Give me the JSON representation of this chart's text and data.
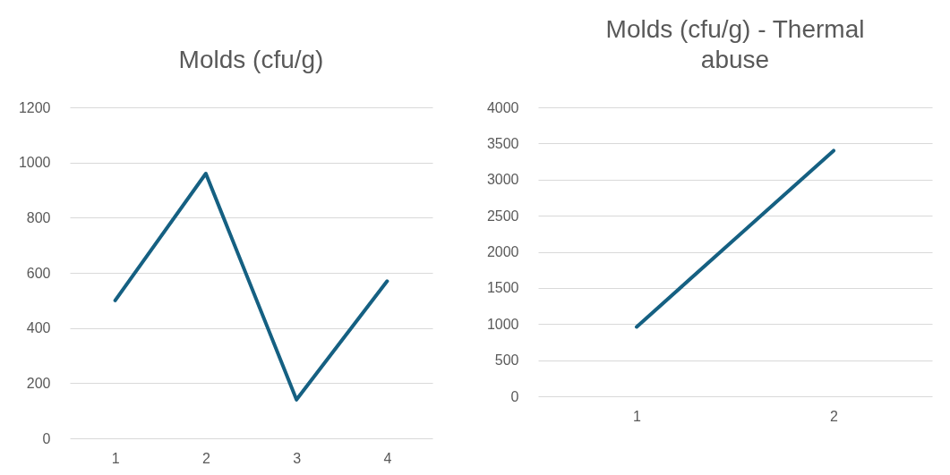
{
  "chart_data": [
    {
      "type": "line",
      "title": "Molds (cfu/g)",
      "categories": [
        "1",
        "2",
        "3",
        "4"
      ],
      "values": [
        500,
        960,
        140,
        570
      ],
      "color": "#156082",
      "ylim": [
        0,
        1200
      ],
      "yticks": [
        0,
        200,
        400,
        600,
        800,
        1000,
        1200
      ],
      "grid": "y"
    },
    {
      "type": "line",
      "title": "Molds (cfu/g) - Thermal abuse",
      "categories": [
        "1",
        "2"
      ],
      "values": [
        960,
        3400
      ],
      "color": "#156082",
      "ylim": [
        0,
        4000
      ],
      "yticks": [
        0,
        500,
        1000,
        1500,
        2000,
        2500,
        3000,
        3500,
        4000
      ],
      "grid": "y"
    }
  ]
}
